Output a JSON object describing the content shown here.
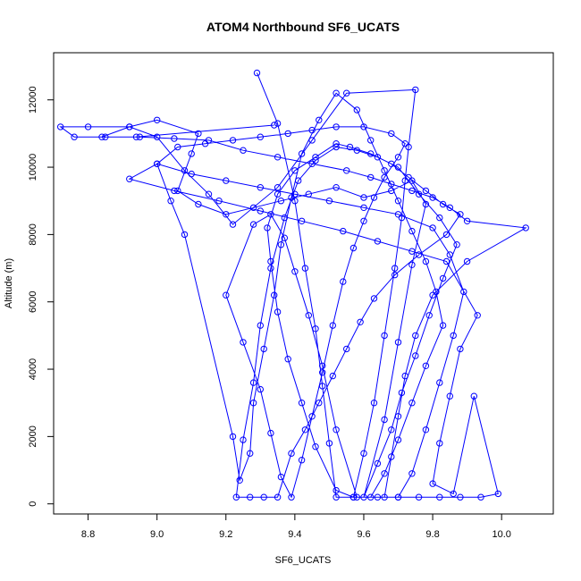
{
  "chart_data": {
    "type": "scatter",
    "title": "ATOM4 Northbound SF6_UCATS",
    "xlabel": "SF6_UCATS",
    "ylabel": "Altitude (m)",
    "xlim": [
      8.7,
      10.15
    ],
    "ylim": [
      -300,
      13400
    ],
    "x_ticks": [
      8.8,
      9.0,
      9.2,
      9.4,
      9.6,
      9.8,
      10.0
    ],
    "x_tick_labels": [
      "8.8",
      "9.0",
      "9.2",
      "9.4",
      "9.6",
      "9.8",
      "10.0"
    ],
    "y_ticks": [
      0,
      2000,
      4000,
      6000,
      8000,
      10000,
      12000
    ],
    "y_tick_labels": [
      "0",
      "2000",
      "4000",
      "6000",
      "8000",
      "10000",
      "12000"
    ],
    "grid": false,
    "legend": "none",
    "colors": {
      "series": "#0000ff",
      "axis": "#000000",
      "background": "#ffffff"
    },
    "marker": "open-circle",
    "connected": true,
    "series": [
      {
        "points": [
          [
            9.29,
            12800
          ],
          [
            9.35,
            11300
          ],
          [
            9.4,
            9000
          ],
          [
            9.43,
            7000
          ],
          [
            9.46,
            5200
          ],
          [
            9.48,
            3500
          ],
          [
            9.5,
            1800
          ],
          [
            9.52,
            200
          ],
          [
            9.57,
            200
          ],
          [
            9.6,
            1500
          ],
          [
            9.63,
            3000
          ],
          [
            9.66,
            5000
          ],
          [
            9.69,
            7000
          ],
          [
            9.71,
            8500
          ],
          [
            9.72,
            9600
          ],
          [
            9.73,
            10600
          ],
          [
            9.75,
            12300
          ],
          [
            9.55,
            12200
          ],
          [
            9.45,
            10800
          ],
          [
            9.35,
            9400
          ],
          [
            9.22,
            8300
          ],
          [
            9.15,
            9200
          ],
          [
            9.08,
            9900
          ],
          [
            9.0,
            10900
          ],
          [
            8.92,
            11200
          ],
          [
            8.8,
            11200
          ],
          [
            8.72,
            11200
          ],
          [
            8.76,
            10900
          ],
          [
            8.85,
            10900
          ],
          [
            8.95,
            10900
          ],
          [
            9.05,
            10850
          ],
          [
            9.15,
            10800
          ],
          [
            9.25,
            10500
          ],
          [
            9.35,
            10300
          ],
          [
            9.45,
            10100
          ],
          [
            9.55,
            9900
          ],
          [
            9.62,
            9700
          ],
          [
            9.68,
            9500
          ],
          [
            9.74,
            9300
          ],
          [
            9.8,
            9100
          ],
          [
            9.85,
            8800
          ],
          [
            9.9,
            8400
          ],
          [
            10.07,
            8200
          ],
          [
            9.9,
            7200
          ],
          [
            9.8,
            6200
          ],
          [
            9.75,
            5000
          ],
          [
            9.72,
            3800
          ],
          [
            9.7,
            2600
          ],
          [
            9.68,
            1400
          ],
          [
            9.66,
            200
          ],
          [
            9.7,
            200
          ],
          [
            9.74,
            900
          ],
          [
            9.78,
            2200
          ],
          [
            9.82,
            3600
          ],
          [
            9.86,
            5000
          ],
          [
            9.89,
            6300
          ],
          [
            9.85,
            7400
          ],
          [
            9.8,
            8200
          ],
          [
            9.7,
            8600
          ],
          [
            9.6,
            8800
          ],
          [
            9.5,
            9000
          ],
          [
            9.4,
            9200
          ],
          [
            9.3,
            9400
          ],
          [
            9.2,
            9600
          ],
          [
            9.1,
            9800
          ],
          [
            9.0,
            10100
          ],
          [
            8.92,
            9650
          ],
          [
            9.05,
            9300
          ],
          [
            9.18,
            9000
          ],
          [
            9.3,
            8700
          ],
          [
            9.42,
            8400
          ],
          [
            9.54,
            8100
          ],
          [
            9.64,
            7800
          ],
          [
            9.74,
            7500
          ],
          [
            9.84,
            7200
          ],
          [
            9.93,
            5600
          ],
          [
            9.88,
            4600
          ],
          [
            9.85,
            3200
          ],
          [
            9.82,
            1800
          ],
          [
            9.8,
            600
          ],
          [
            9.86,
            300
          ],
          [
            9.92,
            3200
          ],
          [
            9.99,
            300
          ],
          [
            9.94,
            200
          ],
          [
            9.88,
            200
          ],
          [
            9.82,
            200
          ],
          [
            9.76,
            200
          ],
          [
            9.7,
            200
          ],
          [
            9.64,
            200
          ],
          [
            9.58,
            200
          ],
          [
            9.52,
            2200
          ],
          [
            9.48,
            4100
          ],
          [
            9.44,
            5600
          ],
          [
            9.4,
            6900
          ],
          [
            9.37,
            7900
          ],
          [
            9.33,
            8600
          ],
          [
            9.28,
            8300
          ],
          [
            9.2,
            6200
          ],
          [
            9.25,
            4800
          ],
          [
            9.3,
            3400
          ],
          [
            9.33,
            2100
          ],
          [
            9.36,
            800
          ],
          [
            9.39,
            200
          ],
          [
            9.42,
            1300
          ],
          [
            9.45,
            2600
          ],
          [
            9.48,
            3900
          ],
          [
            9.51,
            5300
          ],
          [
            9.54,
            6600
          ],
          [
            9.57,
            7600
          ],
          [
            9.6,
            8400
          ],
          [
            9.63,
            9100
          ],
          [
            9.66,
            9700
          ],
          [
            9.7,
            10300
          ],
          [
            9.72,
            10700
          ],
          [
            9.68,
            11000
          ],
          [
            9.6,
            11200
          ],
          [
            9.52,
            11200
          ],
          [
            9.45,
            11100
          ],
          [
            9.38,
            11000
          ],
          [
            9.3,
            10900
          ],
          [
            9.22,
            10800
          ],
          [
            9.14,
            10700
          ],
          [
            9.06,
            10600
          ],
          [
            9.0,
            10100
          ],
          [
            9.04,
            9000
          ],
          [
            9.08,
            8000
          ],
          [
            9.22,
            2000
          ],
          [
            9.24,
            700
          ],
          [
            9.27,
            1500
          ],
          [
            9.28,
            3000
          ],
          [
            9.31,
            4600
          ],
          [
            9.34,
            6200
          ],
          [
            9.36,
            7700
          ],
          [
            9.39,
            9100
          ],
          [
            9.42,
            10400
          ],
          [
            9.47,
            11400
          ],
          [
            9.52,
            12200
          ],
          [
            9.58,
            11700
          ],
          [
            9.62,
            10800
          ],
          [
            9.66,
            9900
          ],
          [
            9.7,
            9000
          ],
          [
            9.74,
            8100
          ],
          [
            9.78,
            7200
          ],
          [
            9.81,
            6300
          ],
          [
            9.83,
            5300
          ],
          [
            9.78,
            4100
          ],
          [
            9.74,
            3000
          ],
          [
            9.7,
            1900
          ],
          [
            9.66,
            900
          ],
          [
            9.62,
            200
          ],
          [
            9.57,
            200
          ],
          [
            9.52,
            400
          ],
          [
            9.46,
            1700
          ],
          [
            9.42,
            3000
          ],
          [
            9.38,
            4300
          ],
          [
            9.35,
            5700
          ],
          [
            9.33,
            7200
          ],
          [
            9.32,
            8200
          ],
          [
            9.35,
            9200
          ],
          [
            9.4,
            9900
          ],
          [
            9.46,
            10300
          ],
          [
            9.52,
            10700
          ],
          [
            9.56,
            10600
          ],
          [
            9.62,
            10400
          ],
          [
            9.68,
            10100
          ],
          [
            9.73,
            9700
          ],
          [
            9.78,
            9300
          ],
          [
            9.83,
            8900
          ],
          [
            9.88,
            8600
          ],
          [
            9.84,
            8000
          ],
          [
            9.76,
            7400
          ],
          [
            9.69,
            6800
          ],
          [
            9.63,
            6100
          ],
          [
            9.59,
            5400
          ],
          [
            9.55,
            4600
          ],
          [
            9.51,
            3800
          ],
          [
            9.47,
            3000
          ],
          [
            9.43,
            2200
          ],
          [
            9.39,
            1500
          ],
          [
            9.35,
            200
          ],
          [
            9.31,
            200
          ],
          [
            9.27,
            200
          ],
          [
            9.23,
            200
          ],
          [
            9.25,
            1900
          ],
          [
            9.28,
            3600
          ],
          [
            9.3,
            5300
          ],
          [
            9.33,
            7000
          ],
          [
            9.37,
            8500
          ],
          [
            9.41,
            9600
          ],
          [
            9.46,
            10200
          ],
          [
            9.52,
            10600
          ],
          [
            9.58,
            10500
          ],
          [
            9.64,
            10300
          ],
          [
            9.7,
            10000
          ],
          [
            9.76,
            9200
          ],
          [
            9.82,
            8500
          ],
          [
            9.87,
            7700
          ],
          [
            9.83,
            6700
          ],
          [
            9.79,
            5600
          ],
          [
            9.75,
            4400
          ],
          [
            9.71,
            3300
          ],
          [
            9.68,
            2200
          ],
          [
            9.64,
            1200
          ],
          [
            9.6,
            200
          ],
          [
            9.66,
            2500
          ],
          [
            9.7,
            4800
          ],
          [
            9.74,
            7100
          ],
          [
            9.78,
            8900
          ],
          [
            9.74,
            9600
          ],
          [
            9.68,
            9300
          ],
          [
            9.6,
            9100
          ],
          [
            9.52,
            9400
          ],
          [
            9.44,
            9200
          ],
          [
            9.36,
            9000
          ],
          [
            9.28,
            8800
          ],
          [
            9.2,
            8600
          ],
          [
            9.12,
            8900
          ],
          [
            9.06,
            9300
          ],
          [
            9.1,
            10400
          ],
          [
            9.12,
            11000
          ],
          [
            9.0,
            11400
          ],
          [
            8.92,
            11200
          ],
          [
            8.84,
            10900
          ],
          [
            8.94,
            10900
          ],
          [
            9.34,
            11250
          ]
        ]
      }
    ]
  }
}
